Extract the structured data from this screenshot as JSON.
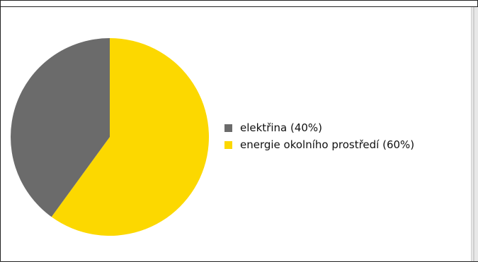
{
  "window": {
    "title": ""
  },
  "chart_data": {
    "type": "pie",
    "title": "",
    "labels": [
      "elektřina (40%)",
      "energie okolního prostředí (60%)"
    ],
    "values": [
      40,
      60
    ],
    "colors": [
      "#6b6b6b",
      "#fcd800"
    ],
    "legend_position": "right",
    "start_angle_deg": 0,
    "direction": "clockwise_from_top_for_yellow"
  }
}
